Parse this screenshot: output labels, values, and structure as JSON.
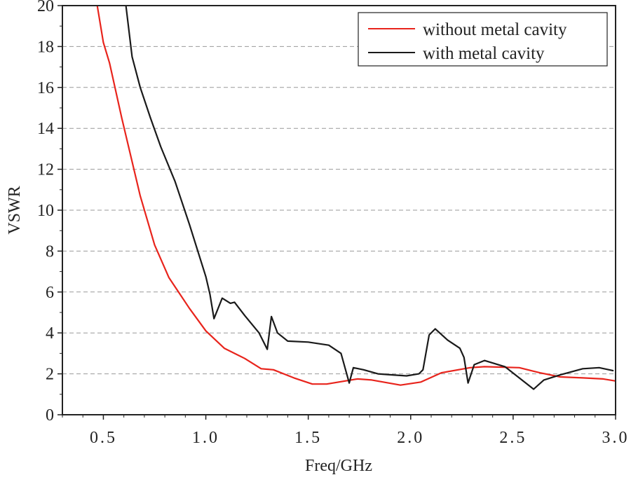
{
  "chart_data": {
    "type": "line",
    "title": "",
    "xlabel": "Freq/GHz",
    "ylabel": "VSWR",
    "xlim": [
      0.3,
      3.0
    ],
    "ylim": [
      0,
      20
    ],
    "xticks": [
      "0.5",
      "1.0",
      "1.5",
      "2.0",
      "2.5",
      "3.0"
    ],
    "yticks": [
      "0",
      "2",
      "4",
      "6",
      "8",
      "10",
      "12",
      "14",
      "16",
      "18",
      "20"
    ],
    "grid": "horizontal dashed",
    "legend_position": "top-right",
    "series": [
      {
        "name": "without metal cavity",
        "color": "#e8241c",
        "x": [
          0.47,
          0.5,
          0.53,
          0.59,
          0.68,
          0.75,
          0.82,
          0.92,
          1.0,
          1.09,
          1.19,
          1.27,
          1.33,
          1.43,
          1.52,
          1.59,
          1.74,
          1.81,
          1.95,
          2.05,
          2.15,
          2.29,
          2.36,
          2.53,
          2.63,
          2.73,
          2.84,
          2.94,
          3.0
        ],
        "y": [
          20,
          18.2,
          17.2,
          14.5,
          10.7,
          8.3,
          6.7,
          5.2,
          4.1,
          3.25,
          2.75,
          2.25,
          2.2,
          1.8,
          1.5,
          1.5,
          1.75,
          1.7,
          1.45,
          1.6,
          2.05,
          2.3,
          2.35,
          2.3,
          2.05,
          1.85,
          1.8,
          1.75,
          1.65
        ]
      },
      {
        "name": "with metal cavity",
        "color": "#1a1a1a",
        "x": [
          0.61,
          0.64,
          0.68,
          0.73,
          0.78,
          0.85,
          0.92,
          1.0,
          1.02,
          1.04,
          1.08,
          1.12,
          1.14,
          1.19,
          1.26,
          1.3,
          1.32,
          1.35,
          1.4,
          1.5,
          1.6,
          1.66,
          1.7,
          1.72,
          1.77,
          1.84,
          1.91,
          1.98,
          2.04,
          2.06,
          2.09,
          2.12,
          2.18,
          2.24,
          2.26,
          2.28,
          2.31,
          2.36,
          2.46,
          2.6,
          2.65,
          2.73,
          2.84,
          2.92,
          2.99
        ],
        "y": [
          20,
          17.5,
          16,
          14.5,
          13.1,
          11.4,
          9.3,
          6.75,
          5.9,
          4.7,
          5.7,
          5.45,
          5.5,
          4.85,
          4.0,
          3.2,
          4.8,
          4.0,
          3.6,
          3.55,
          3.4,
          3.0,
          1.55,
          2.3,
          2.2,
          2.0,
          1.95,
          1.9,
          2.0,
          2.2,
          3.9,
          4.2,
          3.65,
          3.25,
          2.8,
          1.55,
          2.45,
          2.65,
          2.35,
          1.25,
          1.7,
          1.95,
          2.25,
          2.3,
          2.15
        ]
      }
    ]
  }
}
